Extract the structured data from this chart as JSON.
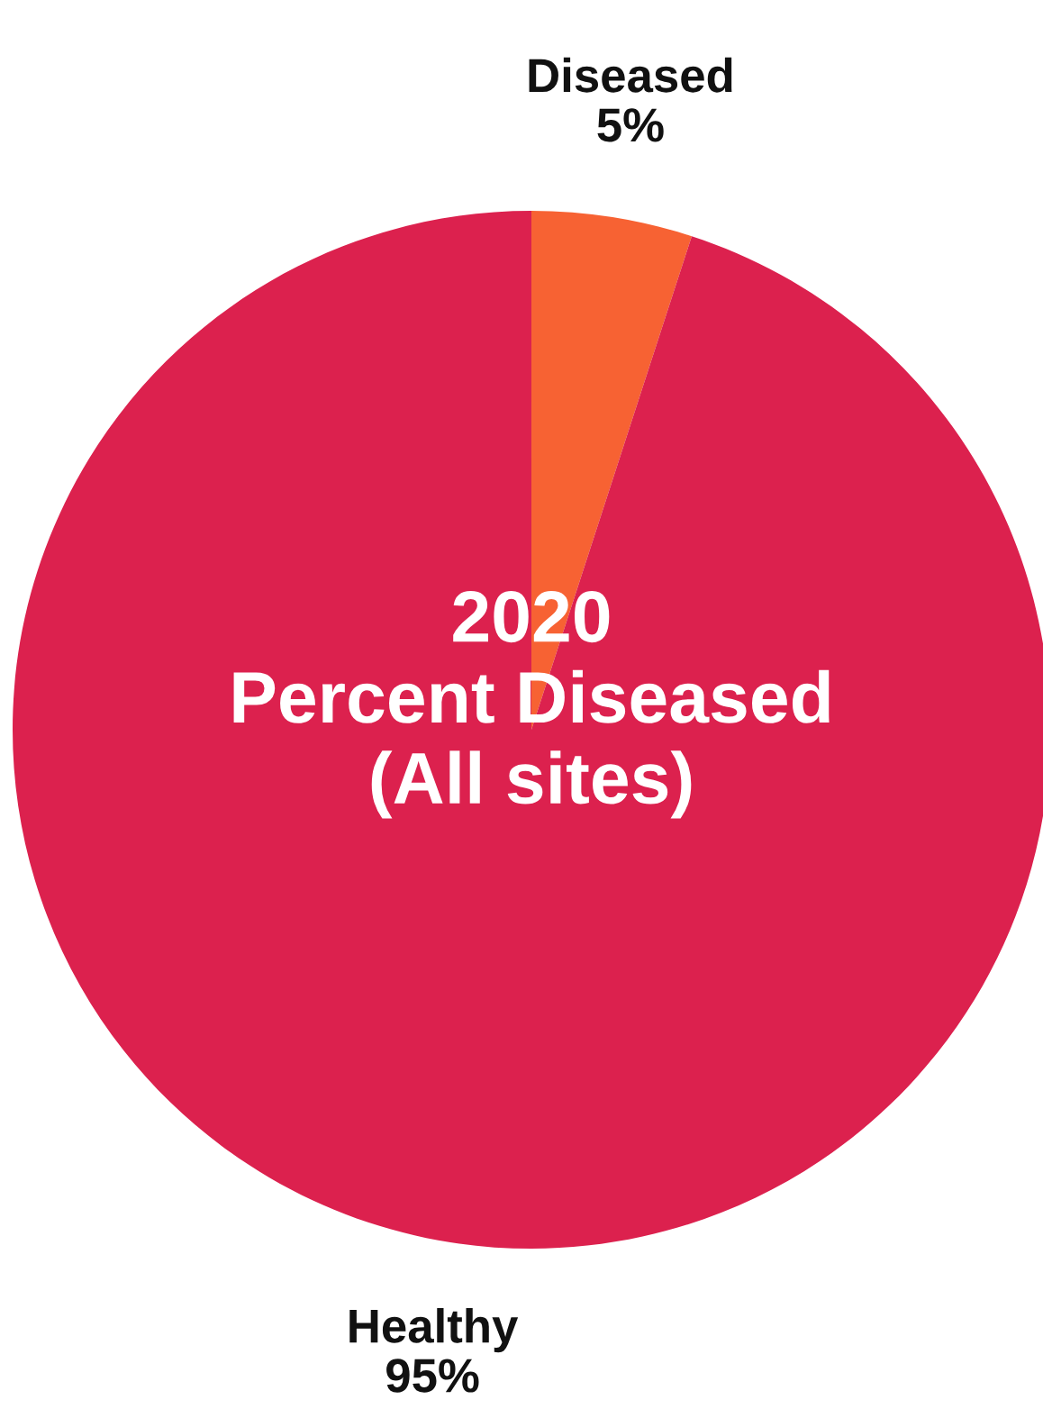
{
  "chart_data": {
    "type": "pie",
    "title": "2020\nPercent Diseased\n(All sites)",
    "categories": [
      "Diseased",
      "Healthy"
    ],
    "values": [
      5,
      95
    ],
    "colors": [
      "#f76233",
      "#dc214e"
    ],
    "value_labels": [
      "5%",
      "95%"
    ],
    "legend": false
  }
}
